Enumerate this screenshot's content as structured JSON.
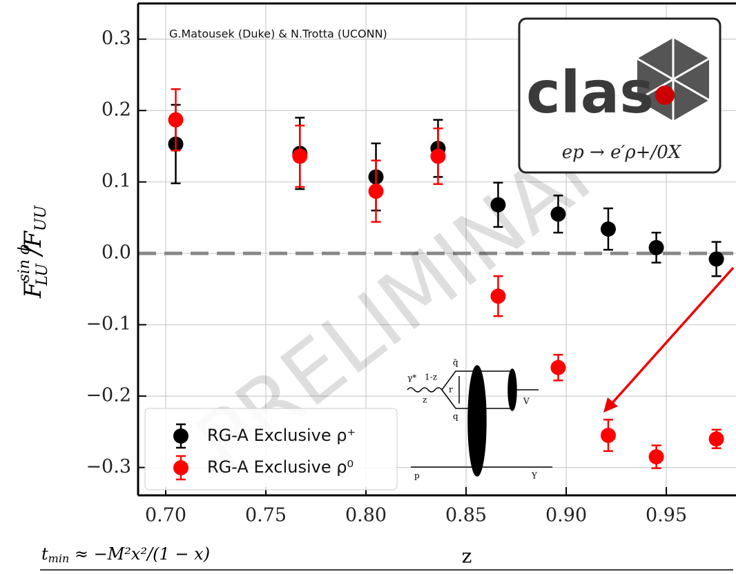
{
  "chart_data": {
    "type": "errorbar-scatter",
    "credit": "G.Matousek (Duke) & N.Trotta (UCONN)",
    "watermark": "PRELIMINARY",
    "logo_text": "clas",
    "reaction": "ep → e′ρ+/0X",
    "xlabel": "z",
    "ylabel": {
      "main": "F",
      "sub": "LU",
      "sup": "sin ϕ",
      "tail": "/F",
      "tail_sub": "UU"
    },
    "formula": {
      "main": "t",
      "sub": "min",
      "tail": " ≈ −M²x²/(1 − x)"
    },
    "diagram_labels": [
      "γ*",
      "1-z",
      "z",
      "q̄",
      "r",
      "q",
      "V",
      "p",
      "Y"
    ],
    "xlim": [
      0.6862,
      0.9848
    ],
    "ylim": [
      -0.339,
      0.35
    ],
    "xticks": [
      {
        "value": 0.7,
        "label": "0.70"
      },
      {
        "value": 0.75,
        "label": "0.75"
      },
      {
        "value": 0.8,
        "label": "0.80"
      },
      {
        "value": 0.85,
        "label": "0.85"
      },
      {
        "value": 0.9,
        "label": "0.90"
      },
      {
        "value": 0.95,
        "label": "0.95"
      }
    ],
    "yticks": [
      {
        "value": 0.3,
        "label": "0.3"
      },
      {
        "value": 0.2,
        "label": "0.2"
      },
      {
        "value": 0.1,
        "label": "0.1"
      },
      {
        "value": 0,
        "label": "0.0"
      },
      {
        "value": -0.1,
        "label": "−0.1"
      },
      {
        "value": -0.2,
        "label": "−0.2"
      },
      {
        "value": -0.3,
        "label": "−0.3"
      }
    ],
    "grid": true,
    "hline": 0,
    "legend": "lower left",
    "series": [
      {
        "name": "RG-A Exclusive ρ⁺",
        "color": "#000000",
        "x": [
          0.705,
          0.767,
          0.805,
          0.836,
          0.866,
          0.896,
          0.921,
          0.945,
          0.975
        ],
        "values": [
          0.153,
          0.14,
          0.107,
          0.147,
          0.068,
          0.055,
          0.034,
          0.008,
          -0.008
        ],
        "errors": [
          0.055,
          0.05,
          0.047,
          0.04,
          0.031,
          0.026,
          0.029,
          0.021,
          0.024
        ]
      },
      {
        "name": "RG-A Exclusive ρ⁰",
        "color": "#ff0000",
        "x": [
          0.705,
          0.767,
          0.805,
          0.836,
          0.866,
          0.896,
          0.921,
          0.945,
          0.975
        ],
        "values": [
          0.187,
          0.136,
          0.087,
          0.136,
          -0.06,
          -0.16,
          -0.255,
          -0.285,
          -0.26
        ],
        "errors": [
          0.043,
          0.043,
          0.043,
          0.039,
          0.028,
          0.018,
          0.022,
          0.016,
          0.013
        ]
      }
    ]
  }
}
